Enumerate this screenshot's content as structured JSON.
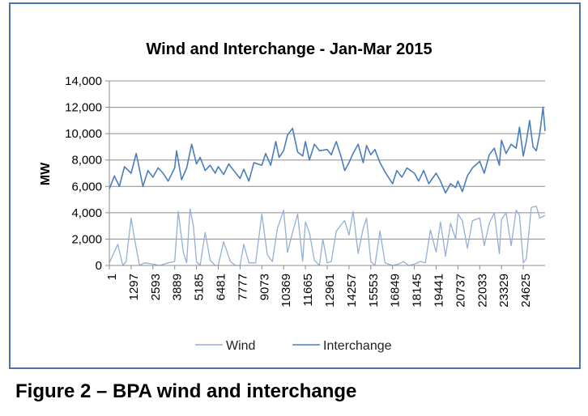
{
  "caption": "Figure 2 – BPA wind and interchange",
  "chart_data": {
    "type": "line",
    "title": "Wind and Interchange - Jan-Mar 2015",
    "xlabel": "",
    "ylabel": "MW",
    "ylim": [
      0,
      14000
    ],
    "yticks": [
      "0",
      "2,000",
      "4,000",
      "6,000",
      "8,000",
      "10,000",
      "12,000",
      "14,000"
    ],
    "x_tick_labels": [
      "1",
      "1297",
      "2593",
      "3889",
      "5185",
      "6481",
      "7777",
      "9073",
      "10369",
      "11665",
      "12961",
      "14257",
      "15553",
      "16849",
      "18145",
      "19441",
      "20737",
      "22033",
      "23329",
      "24625"
    ],
    "xlim": [
      1,
      25920
    ],
    "grid": "horizontal",
    "legend_position": "bottom",
    "series": [
      {
        "name": "Wind",
        "color": "#93b0d6",
        "x": [
          1,
          500,
          800,
          1000,
          1297,
          1500,
          1800,
          2100,
          2593,
          3000,
          3500,
          3889,
          4100,
          4400,
          4600,
          4800,
          5000,
          5185,
          5400,
          5700,
          6000,
          6300,
          6481,
          6800,
          7200,
          7500,
          7777,
          8000,
          8300,
          8700,
          9073,
          9400,
          9700,
          10000,
          10369,
          10600,
          10900,
          11200,
          11500,
          11665,
          11900,
          12200,
          12500,
          12700,
          12961,
          13200,
          13500,
          13800,
          14000,
          14257,
          14500,
          14800,
          15100,
          15300,
          15553,
          15800,
          16100,
          16400,
          16849,
          17200,
          17500,
          17800,
          18145,
          18500,
          18800,
          19100,
          19441,
          19700,
          20000,
          20300,
          20600,
          20737,
          21000,
          21300,
          21600,
          22033,
          22300,
          22600,
          22900,
          23200,
          23329,
          23600,
          23900,
          24200,
          24400,
          24625,
          24800,
          25100,
          25400,
          25600,
          25920
        ],
        "values": [
          200,
          1600,
          0,
          300,
          3600,
          2000,
          0,
          200,
          100,
          0,
          200,
          300,
          4100,
          1000,
          200,
          4300,
          3000,
          300,
          0,
          2500,
          400,
          0,
          0,
          1800,
          300,
          0,
          0,
          1600,
          200,
          200,
          3900,
          800,
          300,
          2800,
          4200,
          1000,
          2500,
          3900,
          300,
          3300,
          2500,
          400,
          0,
          2000,
          200,
          300,
          2600,
          3100,
          3400,
          2300,
          4100,
          900,
          2800,
          3600,
          300,
          0,
          2600,
          200,
          0,
          100,
          300,
          0,
          100,
          300,
          200,
          2700,
          1000,
          3300,
          700,
          3200,
          2000,
          3900,
          3400,
          1300,
          3400,
          3600,
          1500,
          3200,
          4000,
          900,
          3500,
          4000,
          1500,
          4200,
          3800,
          200,
          500,
          4400,
          4500,
          3600,
          3800
        ]
      },
      {
        "name": "Interchange",
        "color": "#4a7ebb",
        "x": [
          1,
          300,
          600,
          900,
          1297,
          1600,
          2000,
          2300,
          2593,
          2900,
          3200,
          3500,
          3889,
          4000,
          4300,
          4600,
          4900,
          5185,
          5400,
          5700,
          6000,
          6300,
          6481,
          6800,
          7100,
          7400,
          7777,
          8000,
          8300,
          8600,
          9073,
          9300,
          9600,
          9900,
          10100,
          10369,
          10600,
          10900,
          11200,
          11500,
          11665,
          11900,
          12200,
          12500,
          12961,
          13200,
          13500,
          13800,
          14000,
          14257,
          14500,
          14800,
          15100,
          15300,
          15553,
          15800,
          16100,
          16400,
          16849,
          17100,
          17400,
          17700,
          18145,
          18400,
          18700,
          19000,
          19441,
          19700,
          20000,
          20300,
          20600,
          20737,
          21000,
          21300,
          21600,
          22033,
          22300,
          22600,
          22900,
          23200,
          23329,
          23600,
          23900,
          24200,
          24400,
          24625,
          24800,
          25000,
          25200,
          25400,
          25600,
          25800,
          25920
        ],
        "values": [
          5800,
          6800,
          6000,
          7500,
          7000,
          8500,
          6000,
          7200,
          6700,
          7400,
          7000,
          6400,
          7400,
          8700,
          6500,
          7400,
          9200,
          7700,
          8200,
          7200,
          7600,
          7000,
          7500,
          6900,
          7700,
          7200,
          6600,
          7300,
          6400,
          7800,
          7600,
          8500,
          7600,
          9400,
          8200,
          8700,
          9900,
          10400,
          8600,
          8300,
          9400,
          8000,
          9200,
          8700,
          8800,
          8400,
          9400,
          8200,
          7200,
          7800,
          8500,
          9200,
          7800,
          9100,
          8400,
          8800,
          7800,
          7100,
          6200,
          7200,
          6700,
          7400,
          7000,
          6400,
          7200,
          6200,
          7000,
          6400,
          5500,
          6200,
          5900,
          6400,
          5600,
          6800,
          7400,
          7900,
          7000,
          8400,
          8900,
          7600,
          9500,
          8500,
          9200,
          8900,
          10500,
          8300,
          9400,
          11000,
          9000,
          8700,
          10000,
          12000,
          10200
        ]
      }
    ]
  }
}
